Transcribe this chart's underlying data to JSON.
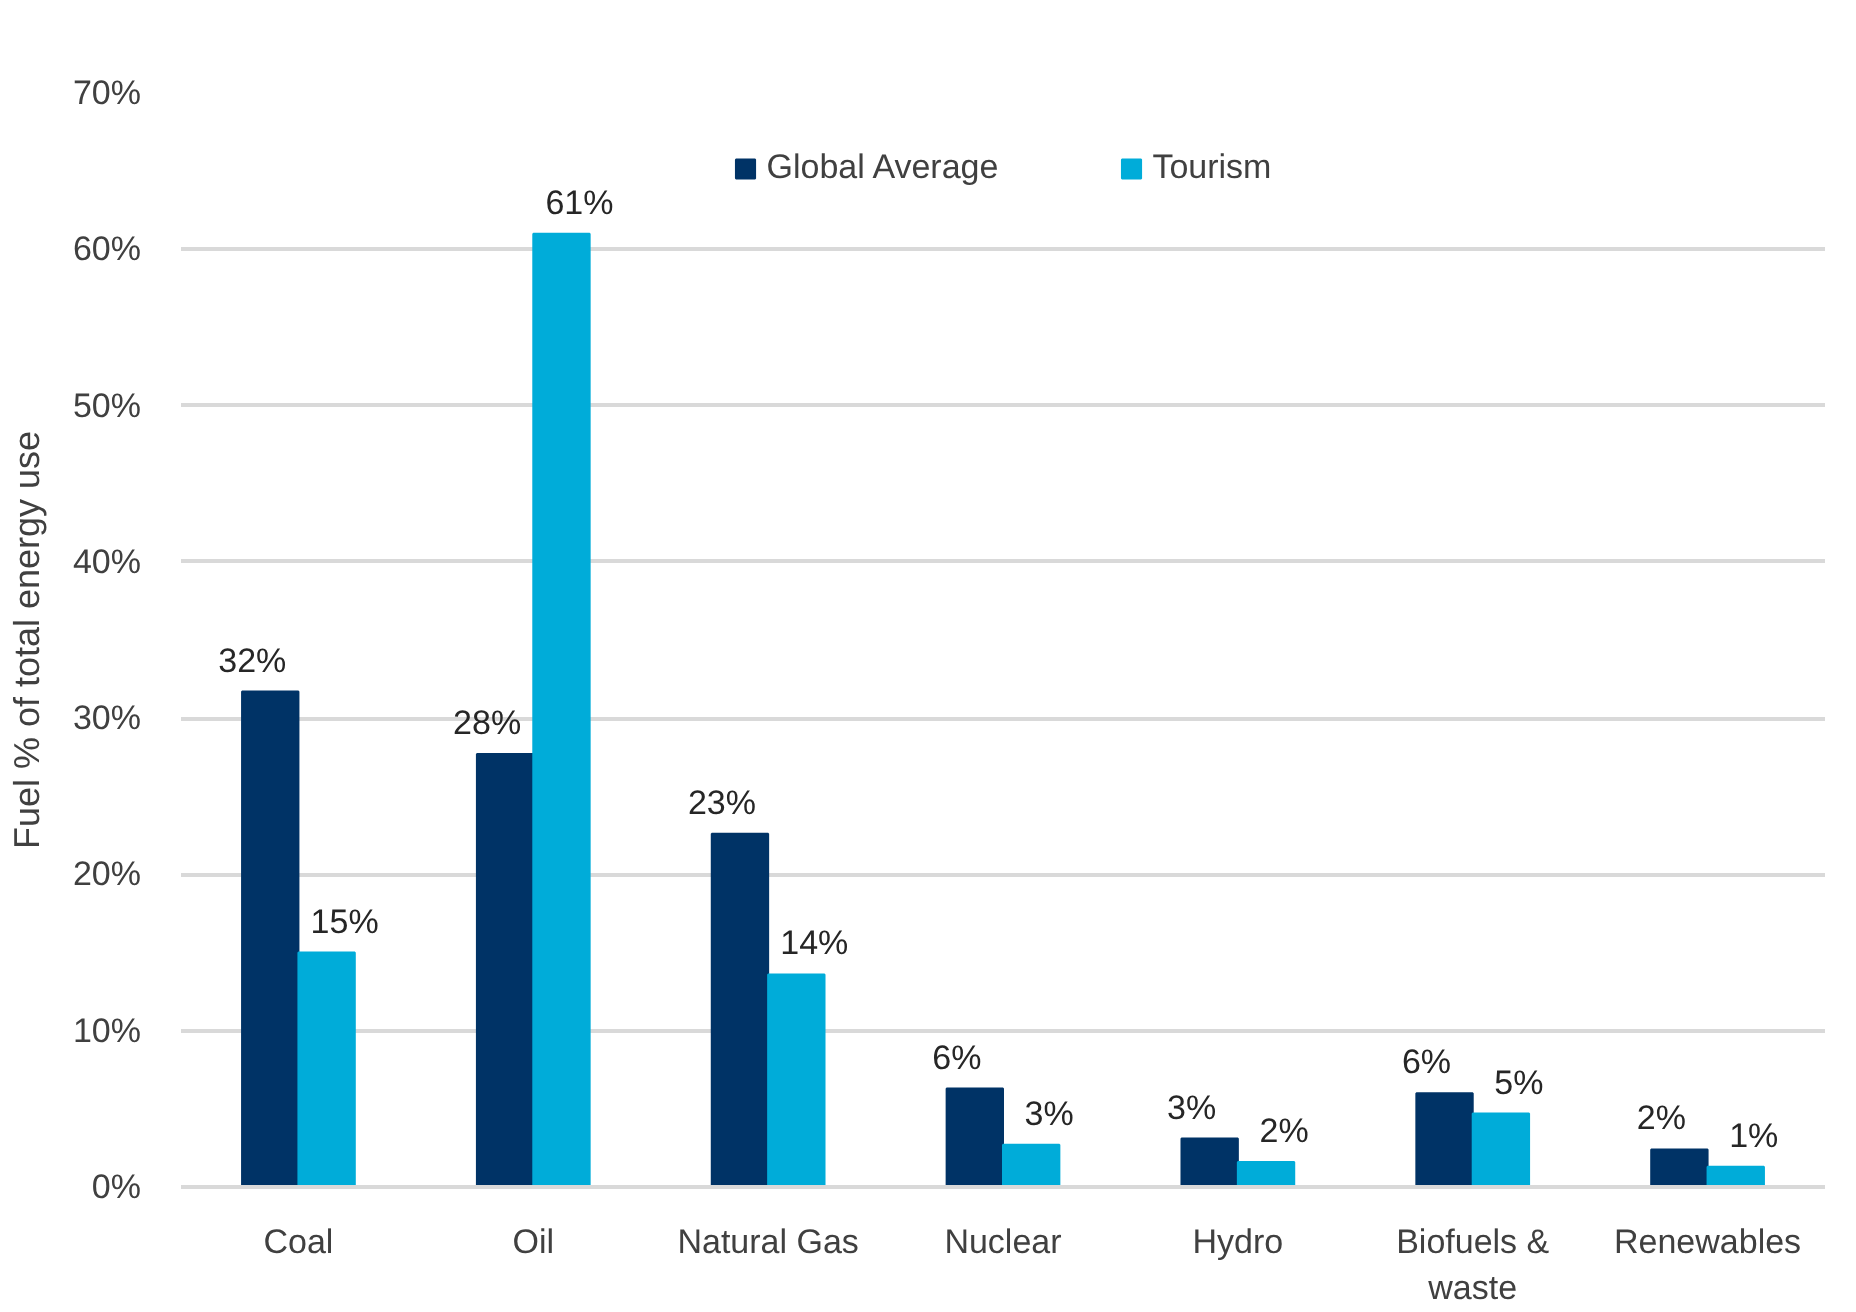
{
  "chart_data": {
    "type": "bar",
    "ylabel": "Fuel % of total energy use",
    "categories": [
      "Coal",
      "Oil",
      "Natural Gas",
      "Nuclear",
      "Hydro",
      "Biofuels & waste",
      "Renewables"
    ],
    "series": [
      {
        "name": "Global Average",
        "color": "#003366",
        "values": [
          31.7,
          27.7,
          22.6,
          6.3,
          3.1,
          6.0,
          2.4
        ],
        "value_labels": [
          "32%",
          "28%",
          "23%",
          "6%",
          "3%",
          "6%",
          "2%"
        ]
      },
      {
        "name": "Tourism",
        "color": "#00acd9",
        "values": [
          15.0,
          61.0,
          13.6,
          2.7,
          1.6,
          4.7,
          1.3
        ],
        "value_labels": [
          "15%",
          "61%",
          "14%",
          "3%",
          "2%",
          "5%",
          "1%"
        ]
      }
    ],
    "ylim": [
      0,
      70
    ],
    "yticks": [
      {
        "value": 0,
        "label": "0%"
      },
      {
        "value": 10,
        "label": "10%"
      },
      {
        "value": 20,
        "label": "20%"
      },
      {
        "value": 30,
        "label": "30%"
      },
      {
        "value": 40,
        "label": "40%"
      },
      {
        "value": 50,
        "label": "50%"
      },
      {
        "value": 60,
        "label": "60%"
      },
      {
        "value": 70,
        "label": "70%"
      }
    ],
    "grid": "y",
    "legend": "top"
  }
}
